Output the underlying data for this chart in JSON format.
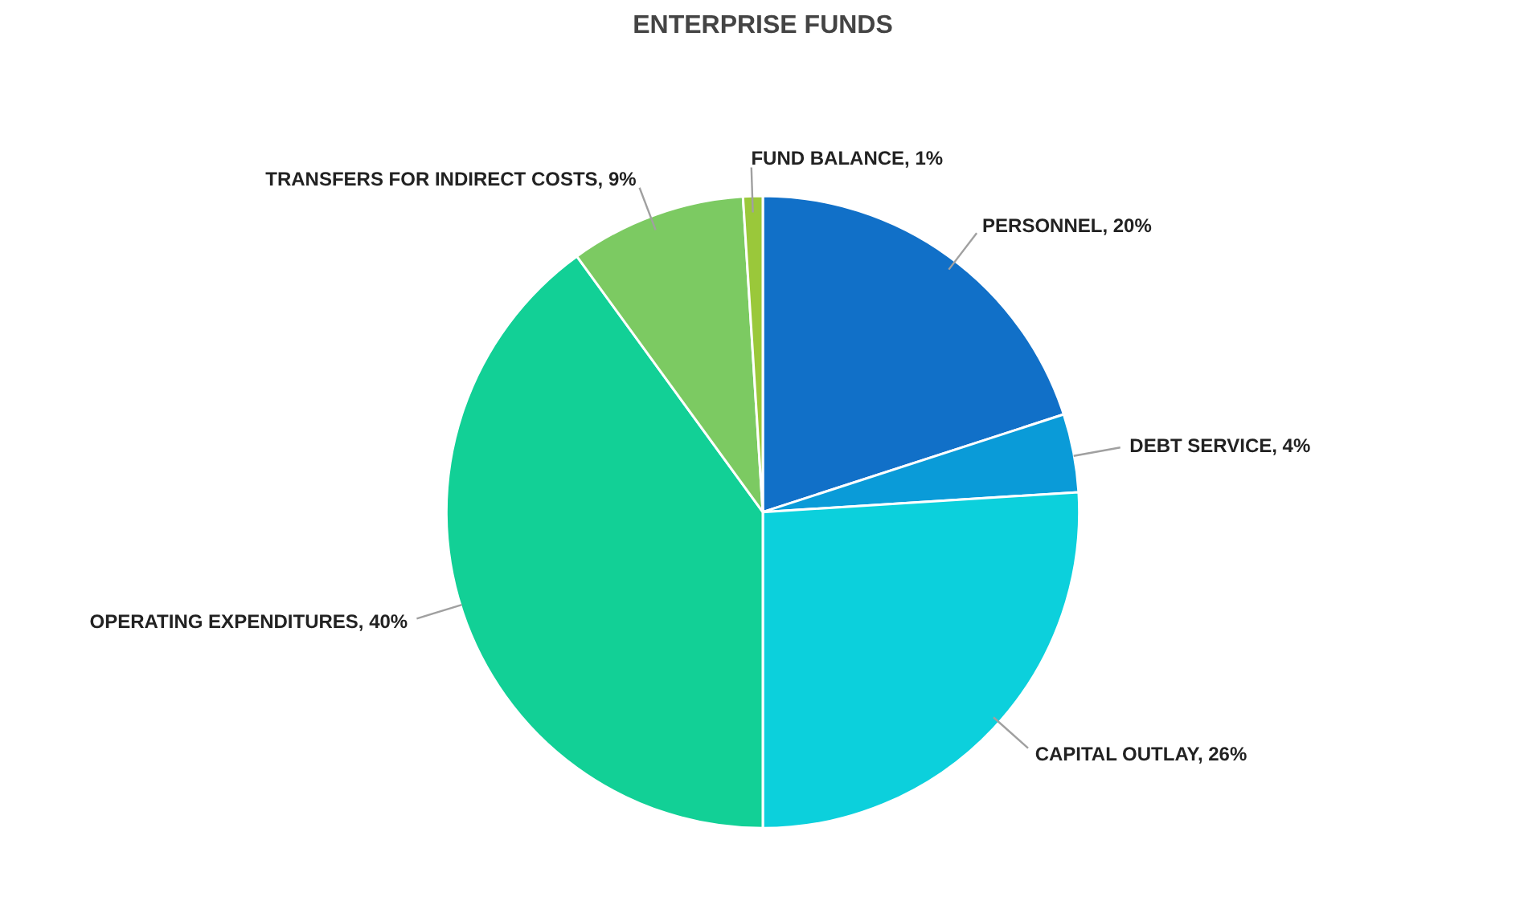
{
  "chart_data": {
    "type": "pie",
    "title": "ENTERPRISE FUNDS",
    "categories": [
      "PERSONNEL",
      "DEBT SERVICE",
      "CAPITAL OUTLAY",
      "OPERATING EXPENDITURES",
      "TRANSFERS FOR INDIRECT COSTS",
      "FUND BALANCE"
    ],
    "values": [
      20,
      4,
      26,
      40,
      9,
      1
    ],
    "value_labels": [
      "20%",
      "4%",
      "26%",
      "40%",
      "9%",
      "1%"
    ],
    "colors": [
      "#1170c8",
      "#0a9bd8",
      "#0cd0dc",
      "#12d096",
      "#7cca62",
      "#9ac83a"
    ]
  }
}
